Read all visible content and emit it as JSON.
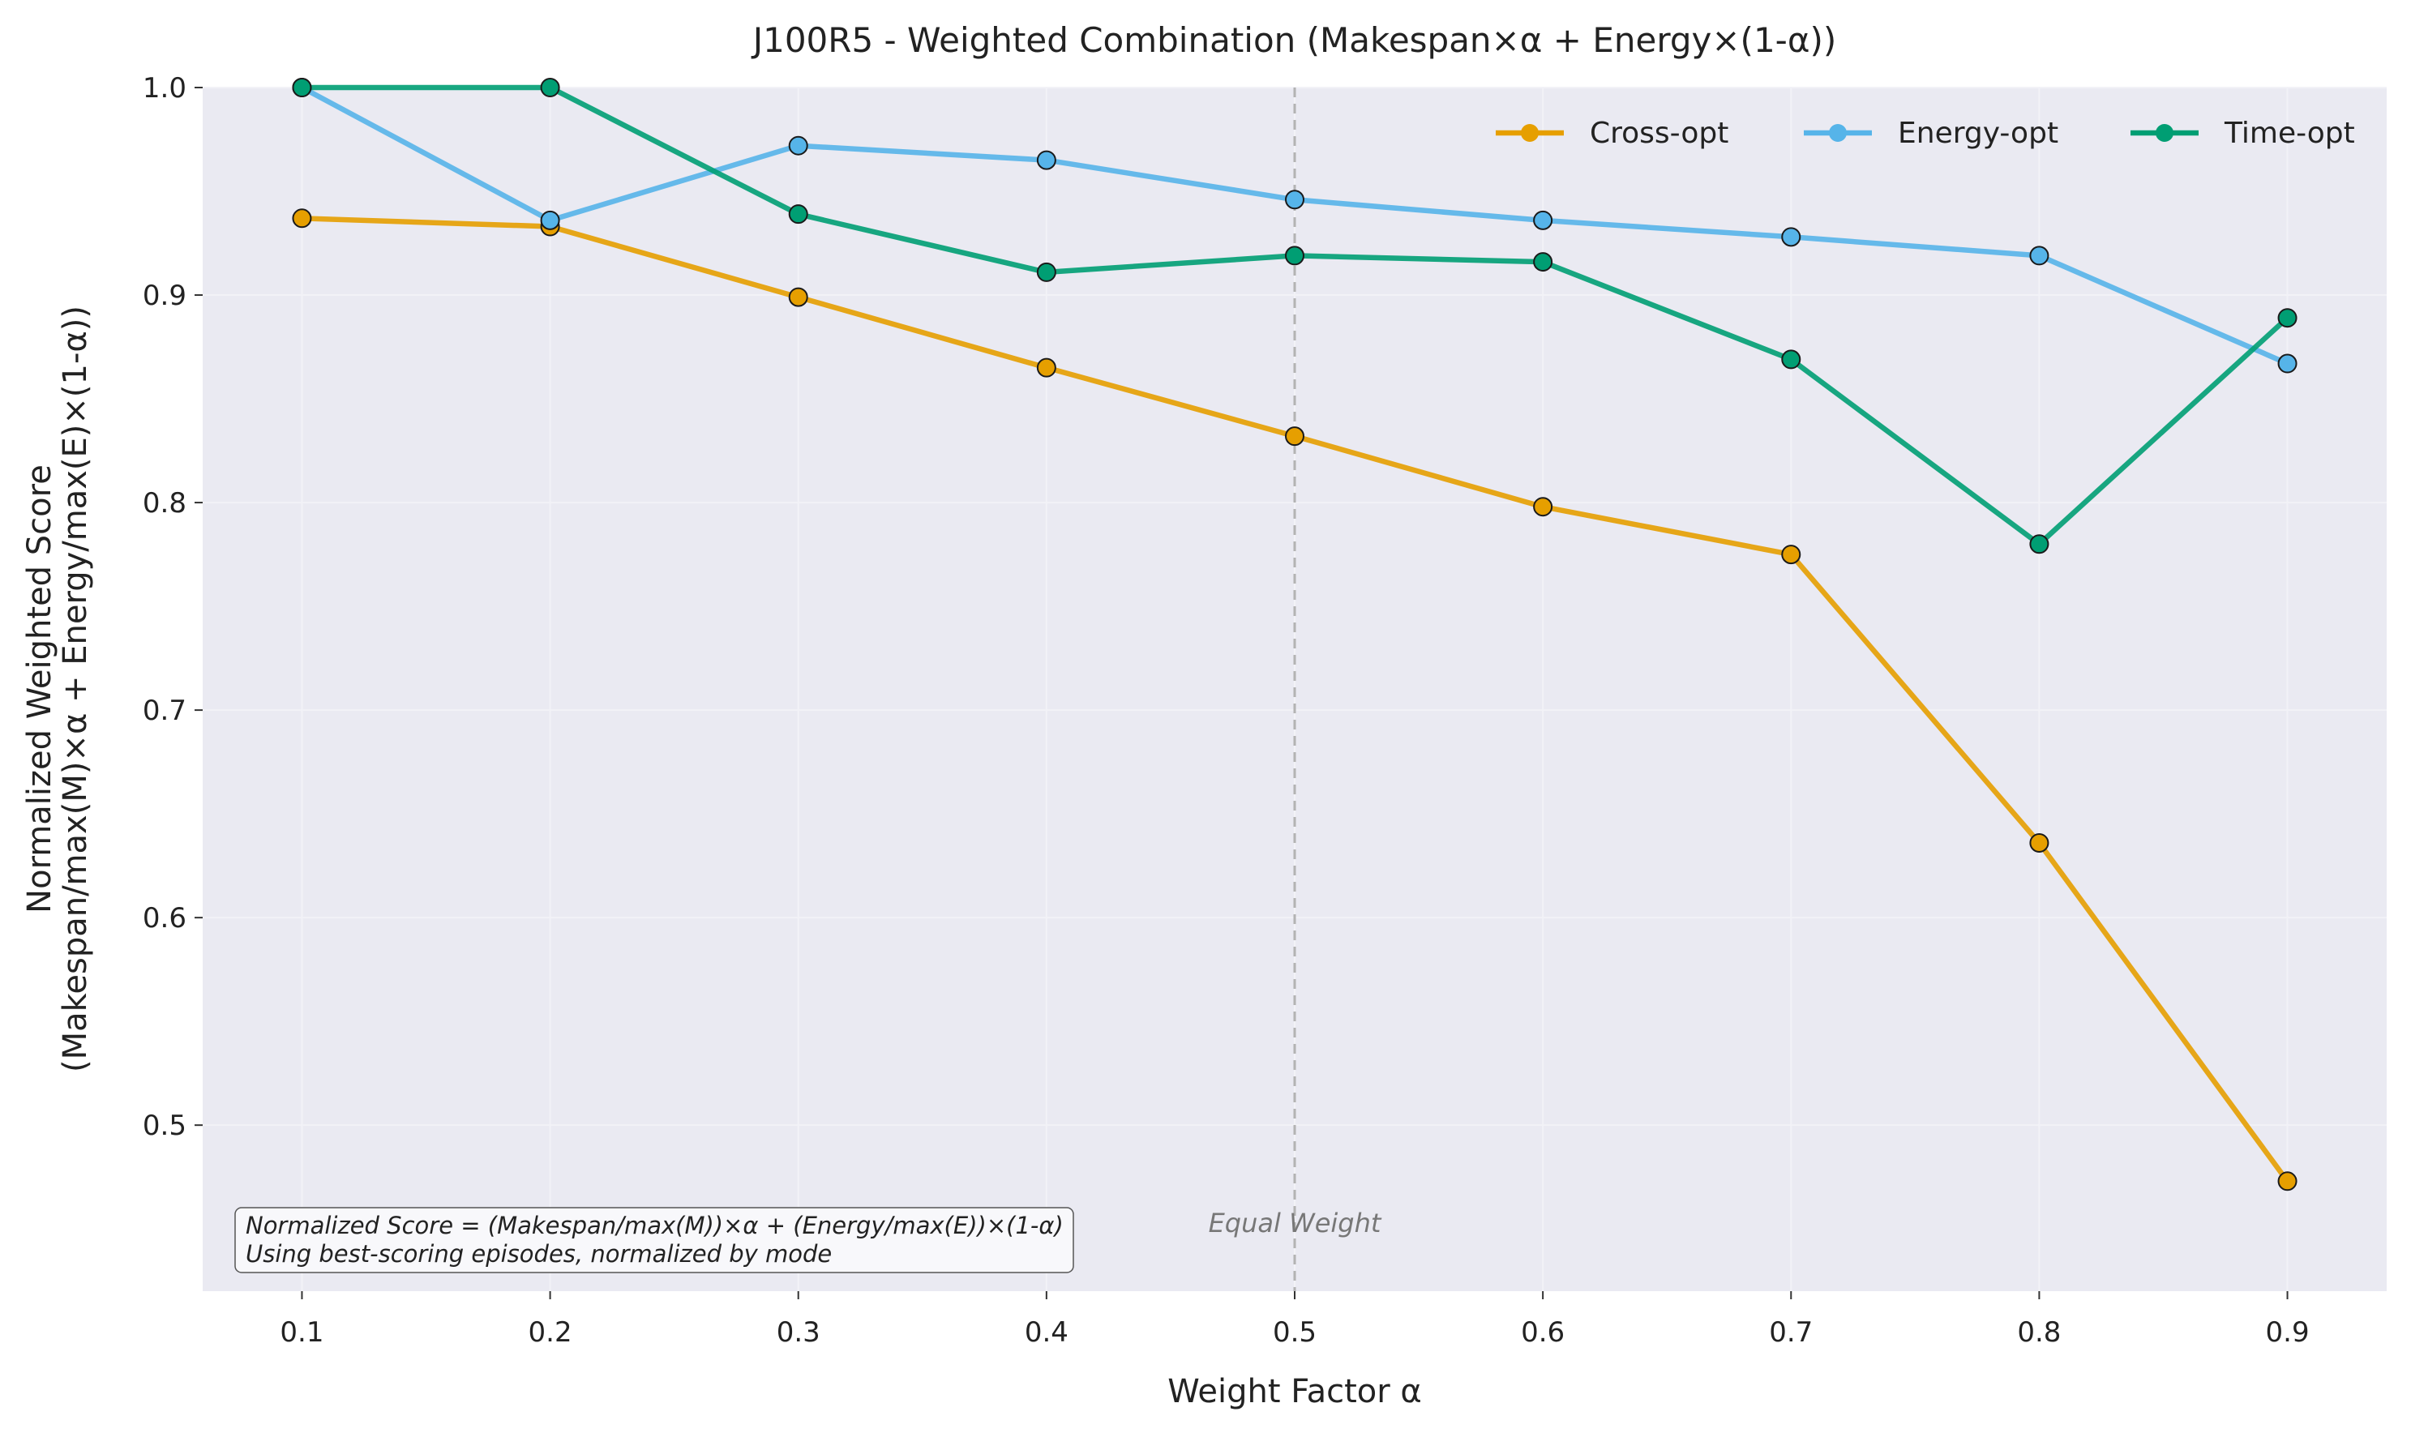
{
  "colors": {
    "background": "#eaeaf2",
    "grid": "#f2f2f7",
    "vline": "#b3b3b3",
    "annotation_box": "#f8f8fb"
  },
  "chart_data": {
    "type": "line",
    "title": "J100R5 - Weighted Combination (Makespan×α + Energy×(1-α))",
    "xlabel": "Weight Factor α",
    "ylabel": [
      "Normalized Weighted Score",
      "(Makespan/max(M)×α + Energy/max(E)×(1-α))"
    ],
    "x": [
      0.1,
      0.2,
      0.3,
      0.4,
      0.5,
      0.6,
      0.7,
      0.8,
      0.9
    ],
    "x_tick_labels": [
      "0.1",
      "0.2",
      "0.3",
      "0.4",
      "0.5",
      "0.6",
      "0.7",
      "0.8",
      "0.9"
    ],
    "y_ticks": [
      0.5,
      0.6,
      0.7,
      0.8,
      0.9,
      1.0
    ],
    "y_tick_labels": [
      "0.5",
      "0.6",
      "0.7",
      "0.8",
      "0.9",
      "1.0"
    ],
    "xlim": [
      0.06,
      0.94
    ],
    "ylim": [
      0.42,
      1.0
    ],
    "grid": true,
    "legend_position": "top-right",
    "series": [
      {
        "name": "Cross-opt",
        "color": "#e69f00",
        "values": [
          0.937,
          0.933,
          0.899,
          0.865,
          0.832,
          0.798,
          0.775,
          0.636,
          0.473
        ]
      },
      {
        "name": "Energy-opt",
        "color": "#56b4e9",
        "values": [
          1.0,
          0.936,
          0.972,
          0.965,
          0.946,
          0.936,
          0.928,
          0.919,
          0.867
        ]
      },
      {
        "name": "Time-opt",
        "color": "#009e73",
        "values": [
          1.0,
          1.0,
          0.939,
          0.911,
          0.919,
          0.916,
          0.869,
          0.78,
          0.889
        ]
      }
    ],
    "reference_line": {
      "x": 0.5,
      "label": "Equal Weight"
    },
    "annotation": [
      "Normalized Score = (Makespan/max(M))×α + (Energy/max(E))×(1-α)",
      "Using best-scoring episodes, normalized by mode"
    ]
  }
}
